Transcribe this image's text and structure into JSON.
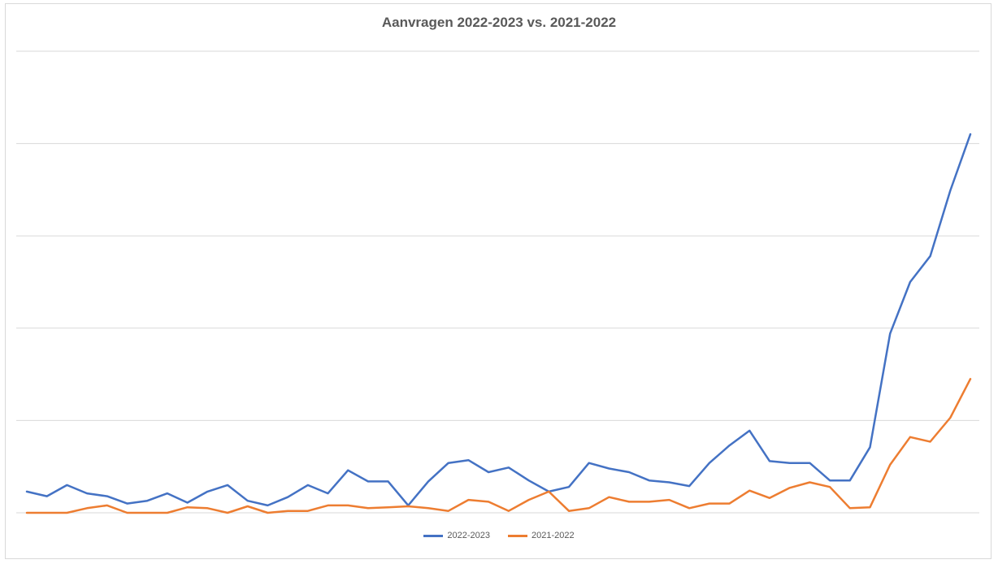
{
  "chart_data": {
    "type": "line",
    "title": "Aanvragen 2022-2023 vs. 2021-2022",
    "xlabel": "",
    "ylabel": "",
    "ylim": [
      0,
      50
    ],
    "grid": true,
    "legend_position": "bottom",
    "x": [
      1,
      2,
      3,
      4,
      5,
      6,
      7,
      8,
      9,
      10,
      11,
      12,
      13,
      14,
      15,
      16,
      17,
      18,
      19,
      20,
      21,
      22,
      23,
      24,
      25,
      26,
      27,
      28,
      29,
      30,
      31,
      32,
      33,
      34,
      35,
      36,
      37,
      38,
      39,
      40,
      41,
      42,
      43,
      44,
      45,
      46,
      47,
      48
    ],
    "series": [
      {
        "name": "2022-2023",
        "color": "#4472c4",
        "values": [
          2.3,
          1.8,
          3.0,
          2.1,
          1.8,
          1.0,
          1.3,
          2.1,
          1.1,
          2.3,
          3.0,
          1.3,
          0.8,
          1.7,
          3.0,
          2.1,
          4.6,
          3.4,
          3.4,
          0.8,
          3.4,
          5.4,
          5.7,
          4.4,
          4.9,
          3.5,
          2.3,
          2.8,
          5.4,
          4.8,
          4.4,
          3.5,
          3.3,
          2.9,
          5.4,
          7.3,
          8.9,
          5.6,
          5.4,
          5.4,
          3.5,
          3.5,
          7.1,
          19.4,
          25.0,
          27.8,
          34.9,
          41.0
        ]
      },
      {
        "name": "2021-2022",
        "color": "#ed7d31",
        "values": [
          0.0,
          0.0,
          0.0,
          0.5,
          0.8,
          0.0,
          0.0,
          0.0,
          0.6,
          0.5,
          0.0,
          0.7,
          0.0,
          0.2,
          0.2,
          0.8,
          0.8,
          0.5,
          0.6,
          0.7,
          0.5,
          0.2,
          1.4,
          1.2,
          0.2,
          1.4,
          2.3,
          0.2,
          0.5,
          1.7,
          1.2,
          1.2,
          1.4,
          0.5,
          1.0,
          1.0,
          2.4,
          1.6,
          2.7,
          3.3,
          2.8,
          0.5,
          0.6,
          5.2,
          8.2,
          7.7,
          10.3,
          14.5
        ]
      }
    ]
  }
}
